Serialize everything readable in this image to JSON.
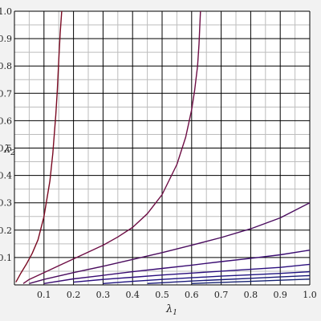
{
  "chart_data": {
    "type": "line",
    "title": "",
    "xlabel": "λ",
    "xlabel_sub": "1",
    "ylabel": "λ",
    "ylabel_sub": "2",
    "xlim": [
      0,
      1
    ],
    "ylim": [
      0,
      1
    ],
    "x_ticks": [
      "0.1",
      "0.2",
      "0.3",
      "0.4",
      "0.5",
      "0.6",
      "0.7",
      "0.8",
      "0.9",
      "1.0"
    ],
    "y_ticks": [
      "0.1",
      "0.2",
      "0.3",
      "0.4",
      "0.5",
      "0.6",
      "0.7",
      "0.8",
      "0.9",
      "1.0"
    ],
    "grid": true,
    "minor_grid": true,
    "colors": {
      "background": "#f2f2f2",
      "plot_background": "#ffffff",
      "major_grid": "#000000",
      "minor_grid": "#bdbdbd"
    },
    "series": [
      {
        "color": "#7a0a22",
        "x": [
          0.005,
          0.02,
          0.04,
          0.06,
          0.08,
          0.1,
          0.12,
          0.13,
          0.14,
          0.145,
          0.15,
          0.155,
          0.16
        ],
        "y": [
          0.01,
          0.04,
          0.075,
          0.115,
          0.165,
          0.25,
          0.38,
          0.48,
          0.62,
          0.71,
          0.82,
          0.92,
          1.0
        ]
      },
      {
        "color": "#6e0e45",
        "x": [
          0.03,
          0.05,
          0.1,
          0.15,
          0.2,
          0.25,
          0.3,
          0.35,
          0.4,
          0.45,
          0.5,
          0.55,
          0.58,
          0.6,
          0.61,
          0.62,
          0.625,
          0.63
        ],
        "y": [
          0.005,
          0.02,
          0.045,
          0.07,
          0.095,
          0.12,
          0.145,
          0.175,
          0.21,
          0.26,
          0.33,
          0.44,
          0.54,
          0.64,
          0.71,
          0.8,
          0.88,
          1.0
        ]
      },
      {
        "color": "#4a0c5e",
        "x": [
          0.05,
          0.1,
          0.2,
          0.3,
          0.4,
          0.5,
          0.6,
          0.7,
          0.8,
          0.9,
          1.0
        ],
        "y": [
          0.005,
          0.02,
          0.045,
          0.068,
          0.093,
          0.118,
          0.145,
          0.173,
          0.205,
          0.245,
          0.3
        ]
      },
      {
        "color": "#3a0c72",
        "x": [
          0.1,
          0.2,
          0.3,
          0.4,
          0.5,
          0.6,
          0.7,
          0.8,
          0.9,
          1.0
        ],
        "y": [
          0.005,
          0.022,
          0.035,
          0.048,
          0.06,
          0.072,
          0.085,
          0.097,
          0.11,
          0.127
        ]
      },
      {
        "color": "#2b0e7e",
        "x": [
          0.2,
          0.3,
          0.4,
          0.5,
          0.6,
          0.7,
          0.8,
          0.9,
          1.0
        ],
        "y": [
          0.01,
          0.02,
          0.028,
          0.036,
          0.043,
          0.05,
          0.057,
          0.064,
          0.075
        ]
      },
      {
        "color": "#1e1280",
        "x": [
          0.3,
          0.4,
          0.5,
          0.6,
          0.7,
          0.8,
          0.9,
          1.0
        ],
        "y": [
          0.005,
          0.013,
          0.02,
          0.026,
          0.032,
          0.037,
          0.042,
          0.048
        ]
      },
      {
        "color": "#181878",
        "x": [
          0.45,
          0.5,
          0.6,
          0.7,
          0.8,
          0.9,
          1.0
        ],
        "y": [
          0.005,
          0.008,
          0.014,
          0.019,
          0.024,
          0.029,
          0.034
        ]
      },
      {
        "color": "#142070",
        "x": [
          0.6,
          0.7,
          0.8,
          0.9,
          1.0
        ],
        "y": [
          0.005,
          0.009,
          0.013,
          0.017,
          0.021
        ]
      }
    ]
  }
}
